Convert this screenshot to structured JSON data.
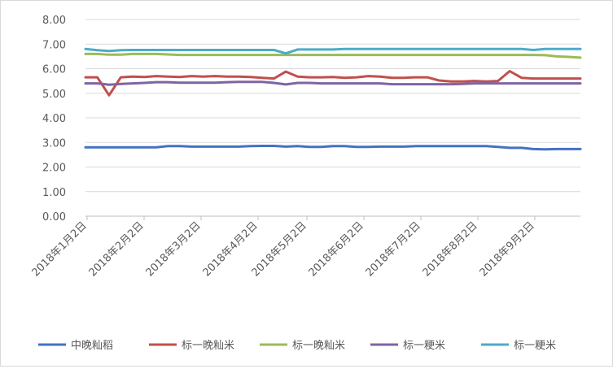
{
  "chart_data": {
    "type": "line",
    "title": "",
    "xlabel": "",
    "ylabel": "",
    "ylim": [
      0,
      8
    ],
    "yticks": [
      "0.00",
      "1.00",
      "2.00",
      "3.00",
      "4.00",
      "5.00",
      "6.00",
      "7.00",
      "8.00"
    ],
    "x_tick_labels": [
      "2018年1月2日",
      "2018年2月2日",
      "2018年3月2日",
      "2018年4月2日",
      "2018年5月2日",
      "2018年6月2日",
      "2018年7月2日",
      "2018年8月2日",
      "2018年9月2日"
    ],
    "grid": "horizontal",
    "legend_position": "bottom",
    "series": [
      {
        "name": "中晚籼稻",
        "color": "#4472C4",
        "values": [
          2.8,
          2.8,
          2.8,
          2.8,
          2.8,
          2.8,
          2.8,
          2.85,
          2.85,
          2.83,
          2.83,
          2.83,
          2.83,
          2.83,
          2.85,
          2.86,
          2.86,
          2.83,
          2.85,
          2.82,
          2.82,
          2.85,
          2.85,
          2.82,
          2.82,
          2.83,
          2.83,
          2.83,
          2.85,
          2.85,
          2.85,
          2.85,
          2.85,
          2.85,
          2.85,
          2.82,
          2.78,
          2.78,
          2.73,
          2.72,
          2.73,
          2.73,
          2.73
        ]
      },
      {
        "name": "标一晚籼米",
        "color": "#C0504D",
        "values": [
          5.65,
          5.65,
          4.92,
          5.65,
          5.68,
          5.66,
          5.7,
          5.68,
          5.66,
          5.7,
          5.68,
          5.7,
          5.68,
          5.68,
          5.66,
          5.63,
          5.6,
          5.88,
          5.68,
          5.65,
          5.65,
          5.66,
          5.63,
          5.65,
          5.7,
          5.68,
          5.63,
          5.63,
          5.65,
          5.65,
          5.52,
          5.48,
          5.48,
          5.5,
          5.48,
          5.5,
          5.9,
          5.63,
          5.6,
          5.6,
          5.6,
          5.6,
          5.6
        ]
      },
      {
        "name": "标一晚籼米",
        "color": "#9BBB59",
        "values": [
          6.6,
          6.6,
          6.57,
          6.57,
          6.6,
          6.6,
          6.6,
          6.58,
          6.56,
          6.56,
          6.56,
          6.56,
          6.56,
          6.56,
          6.56,
          6.56,
          6.56,
          6.56,
          6.56,
          6.56,
          6.56,
          6.56,
          6.56,
          6.56,
          6.56,
          6.56,
          6.56,
          6.56,
          6.56,
          6.56,
          6.56,
          6.56,
          6.56,
          6.56,
          6.56,
          6.56,
          6.56,
          6.56,
          6.56,
          6.55,
          6.5,
          6.48,
          6.45
        ]
      },
      {
        "name": "标一粳米",
        "color": "#8064A2",
        "values": [
          5.4,
          5.4,
          5.35,
          5.38,
          5.4,
          5.42,
          5.45,
          5.45,
          5.43,
          5.43,
          5.43,
          5.43,
          5.45,
          5.46,
          5.46,
          5.46,
          5.42,
          5.36,
          5.42,
          5.42,
          5.4,
          5.4,
          5.4,
          5.4,
          5.4,
          5.4,
          5.37,
          5.37,
          5.37,
          5.37,
          5.37,
          5.37,
          5.38,
          5.4,
          5.4,
          5.4,
          5.4,
          5.4,
          5.4,
          5.4,
          5.4,
          5.4,
          5.4
        ]
      },
      {
        "name": "标一粳米",
        "color": "#4BACC6",
        "values": [
          6.8,
          6.75,
          6.72,
          6.75,
          6.76,
          6.76,
          6.76,
          6.76,
          6.76,
          6.76,
          6.76,
          6.76,
          6.76,
          6.76,
          6.76,
          6.76,
          6.76,
          6.62,
          6.78,
          6.78,
          6.78,
          6.78,
          6.8,
          6.8,
          6.8,
          6.8,
          6.8,
          6.8,
          6.8,
          6.8,
          6.8,
          6.8,
          6.8,
          6.8,
          6.8,
          6.8,
          6.8,
          6.8,
          6.76,
          6.8,
          6.8,
          6.8,
          6.8
        ]
      }
    ]
  }
}
